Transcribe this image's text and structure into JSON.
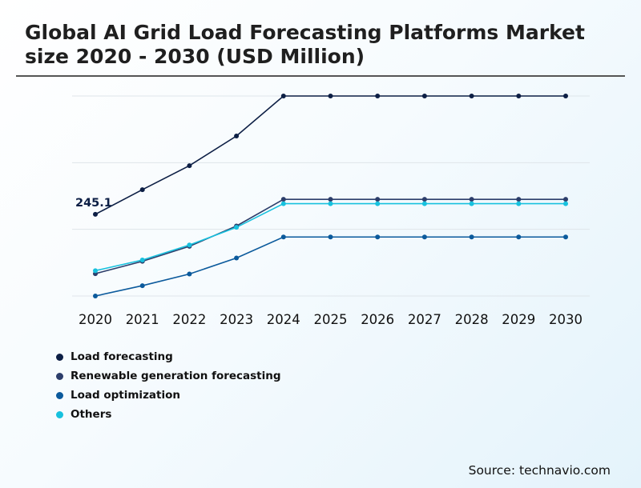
{
  "chart_data": {
    "type": "line",
    "title": "Global AI Grid Load Forecasting Platforms Market size 2020 - 2030 (USD Million)",
    "categories": [
      "2020",
      "2021",
      "2022",
      "2023",
      "2024",
      "2025",
      "2026",
      "2027",
      "2028",
      "2029",
      "2030"
    ],
    "ylim": [
      0,
      600
    ],
    "grid": true,
    "series": [
      {
        "name": "Load forecasting",
        "color": "#0d1f45",
        "values": [
          245.1,
          319,
          391,
          480,
          600,
          600,
          600,
          600,
          600,
          600,
          600
        ],
        "label_index": 0,
        "label": "245.1"
      },
      {
        "name": "Renewable generation forecasting",
        "color": "#2c3e6b",
        "values": [
          67,
          104,
          149,
          210,
          290,
          290,
          290,
          290,
          290,
          290,
          290
        ]
      },
      {
        "name": "Load optimization",
        "color": "#0b5a9c",
        "values": [
          0,
          31,
          66,
          114,
          177,
          177,
          177,
          177,
          177,
          177,
          177
        ]
      },
      {
        "name": "Others",
        "color": "#17c1de",
        "values": [
          76,
          108,
          153,
          206,
          277,
          277,
          277,
          277,
          277,
          277,
          277
        ]
      }
    ]
  },
  "source": "Source: technavio.com"
}
